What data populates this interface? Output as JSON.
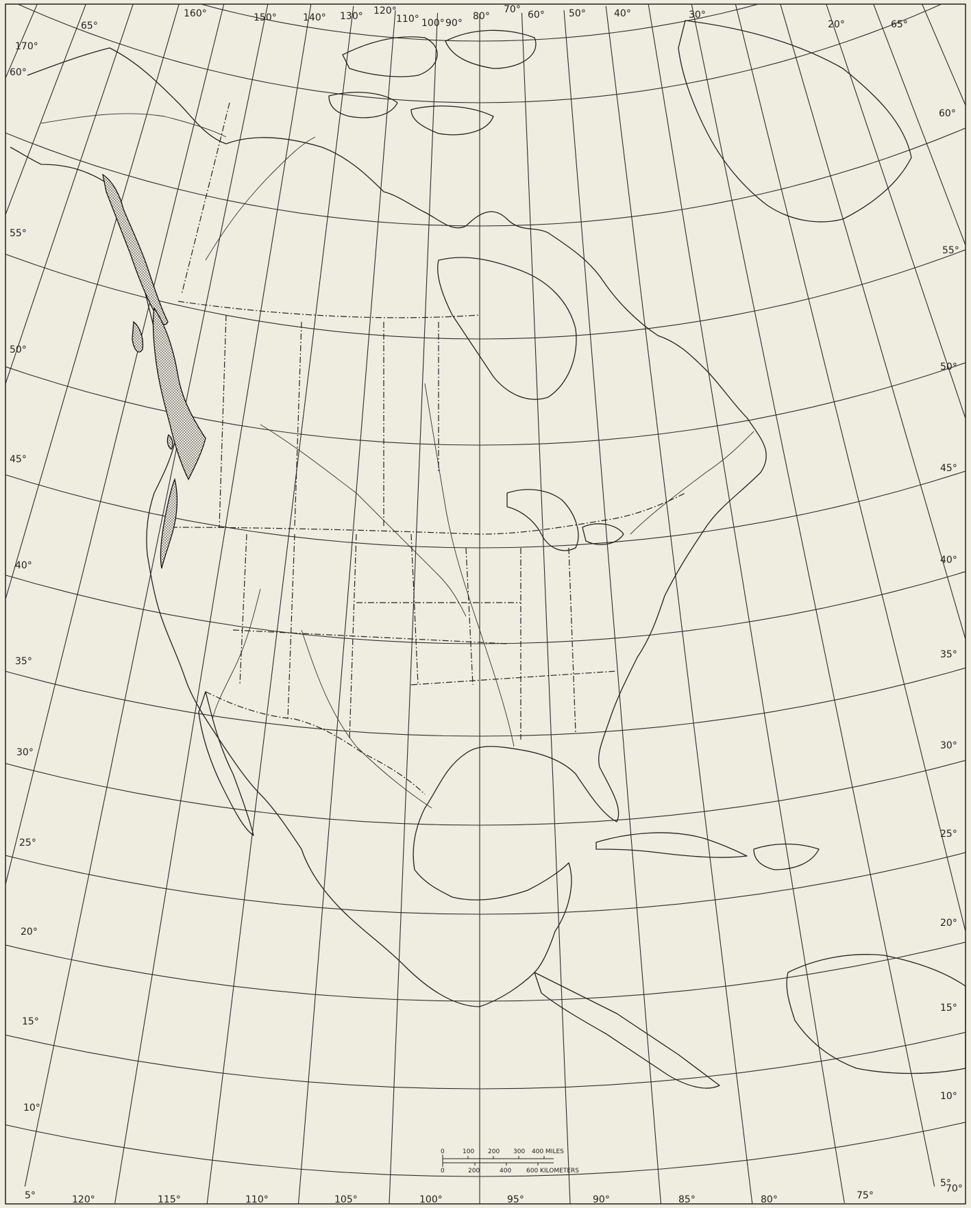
{
  "map": {
    "colors": {
      "paper": "#efece0",
      "ink": "#222222",
      "stipple": "#555555"
    },
    "meridian_labels": [
      "170°",
      "160°",
      "150°",
      "140°",
      "130°",
      "120°",
      "110°",
      "100°",
      "90°",
      "80°",
      "70°",
      "60°",
      "50°",
      "40°",
      "30°",
      "20°"
    ],
    "bottom_meridian_labels": [
      "120°",
      "115°",
      "110°",
      "105°",
      "100°",
      "95°",
      "90°",
      "85°",
      "80°",
      "75°",
      "70°"
    ],
    "left_parallel_labels": [
      "65°",
      "60°",
      "55°",
      "50°",
      "45°",
      "40°",
      "35°",
      "30°",
      "25°",
      "20°",
      "15°",
      "10°",
      "5°"
    ],
    "right_parallel_labels": [
      "65°",
      "60°",
      "55°",
      "50°",
      "45°",
      "40°",
      "35°",
      "30°",
      "25°",
      "20°",
      "15°",
      "10°",
      "5°"
    ],
    "scale_bar": {
      "miles_ticks": [
        "0",
        "100",
        "200",
        "300",
        "400 MILES"
      ],
      "km_ticks": [
        "0",
        "200",
        "400",
        "600 KILOMETERS"
      ]
    }
  }
}
